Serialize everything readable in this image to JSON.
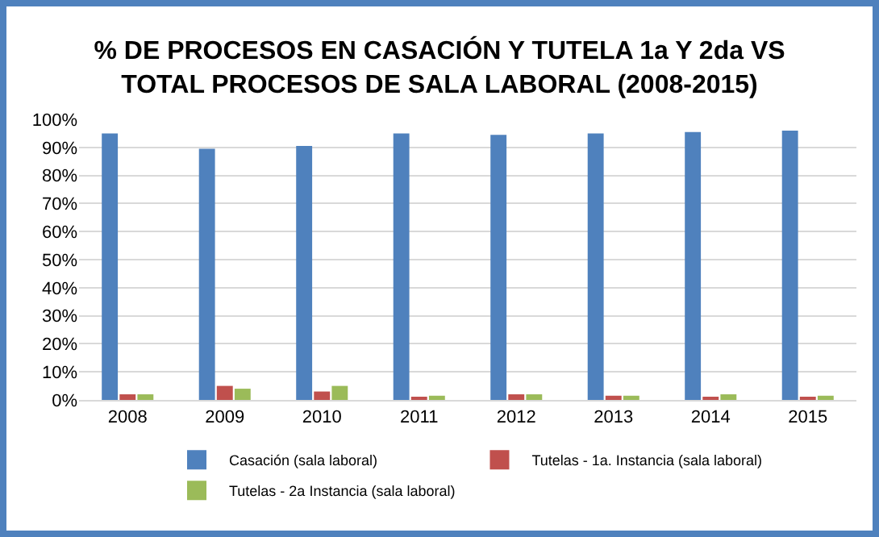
{
  "chart_data": {
    "type": "bar",
    "title": "% DE PROCESOS EN CASACIÓN Y TUTELA 1a Y 2da VS\nTOTAL PROCESOS DE SALA LABORAL (2008-2015)",
    "categories": [
      "2008",
      "2009",
      "2010",
      "2011",
      "2012",
      "2013",
      "2014",
      "2015"
    ],
    "series": [
      {
        "name": "Casación (sala laboral)",
        "color": "#4f81bd",
        "values": [
          95,
          89.5,
          90.5,
          95,
          94.5,
          95,
          95.5,
          96
        ]
      },
      {
        "name": "Tutelas - 1a. Instancia (sala laboral)",
        "color": "#c0504d",
        "values": [
          2,
          5,
          3,
          1,
          2,
          1.5,
          1,
          1
        ]
      },
      {
        "name": "Tutelas - 2a Instancia (sala laboral)",
        "color": "#9bbb59",
        "values": [
          2,
          4,
          5,
          1.5,
          2,
          1.5,
          2,
          1.5
        ]
      }
    ],
    "ylim": [
      0,
      100
    ],
    "yticks": [
      {
        "value": 0,
        "label": "0%"
      },
      {
        "value": 10,
        "label": "10%"
      },
      {
        "value": 20,
        "label": "20%"
      },
      {
        "value": 30,
        "label": "30%"
      },
      {
        "value": 40,
        "label": "40%"
      },
      {
        "value": 50,
        "label": "50%"
      },
      {
        "value": 60,
        "label": "60%"
      },
      {
        "value": 70,
        "label": "70%"
      },
      {
        "value": 80,
        "label": "80%"
      },
      {
        "value": 90,
        "label": "90%"
      },
      {
        "value": 100,
        "label": "100%"
      }
    ],
    "grid": "y",
    "legend": "bottom"
  }
}
